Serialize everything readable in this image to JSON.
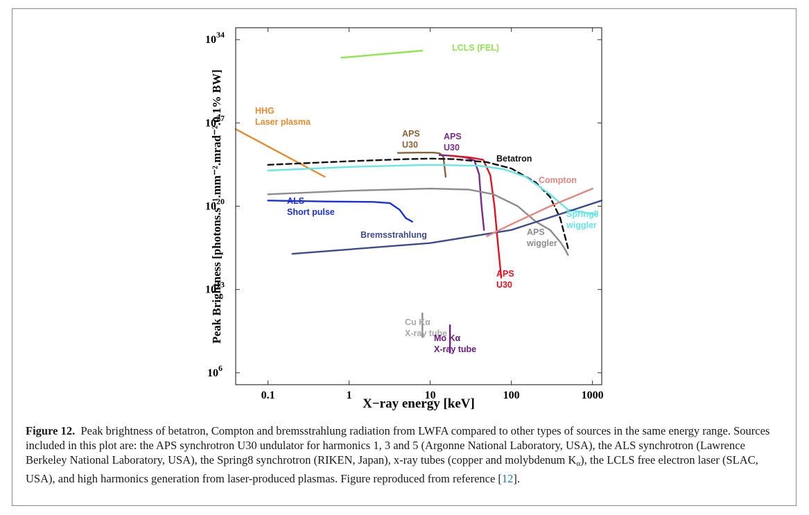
{
  "chart_data": {
    "type": "line",
    "xlabel": "X−ray energy [keV]",
    "ylabel": "Peak Brightness [photons.s⁻¹.mm⁻².mrad⁻².0.1% BW]",
    "x_scale": "log",
    "y_scale": "log",
    "xlim": [
      0.04,
      1300
    ],
    "ylim": [
      100000,
      1e+35
    ],
    "x_ticks": [
      0.1,
      1,
      10,
      100,
      1000
    ],
    "x_tick_labels": [
      "0.1",
      "1",
      "10",
      "100",
      "1000"
    ],
    "y_ticks": [
      1000000,
      10000000000000,
      1e+20,
      1e+27,
      1e+34
    ],
    "y_tick_labels": [
      "10^6",
      "10^13",
      "10^20",
      "10^27",
      "10^34"
    ],
    "grid": false,
    "legend": "none",
    "series": [
      {
        "name": "LCLS (FEL)",
        "color": "#8ee84a",
        "dash": "",
        "points": [
          [
            0.8,
            3e+32
          ],
          [
            8,
            1.2e+33
          ]
        ]
      },
      {
        "name": "HHG Laser plasma",
        "color": "#e8892f",
        "dash": "",
        "points": [
          [
            0.04,
            3e+26
          ],
          [
            0.5,
            3e+22
          ]
        ]
      },
      {
        "name": "APS U30 (harmonic 1)",
        "color": "#8a6238",
        "dash": "",
        "points": [
          [
            4,
            3e+24
          ],
          [
            7,
            3.2e+24
          ],
          [
            11,
            3.2e+24
          ],
          [
            13,
            2.8e+24
          ],
          [
            14.5,
            1.5e+24
          ],
          [
            15.5,
            3e+22
          ]
        ]
      },
      {
        "name": "APS U30 (harmonic 3)",
        "color": "#7a2a8e",
        "dash": "",
        "points": [
          [
            13,
            2e+24
          ],
          [
            20,
            1.7e+24
          ],
          [
            28,
            1.2e+24
          ],
          [
            35,
            7e+23
          ],
          [
            40,
            5e+22
          ],
          [
            43,
            1e+20
          ],
          [
            46,
            1e+18
          ]
        ]
      },
      {
        "name": "APS U30 (harmonic 5)",
        "color": "#e8101f",
        "dash": "",
        "points": [
          [
            18,
            1.7e+24
          ],
          [
            30,
            1.3e+24
          ],
          [
            45,
            8e+23
          ],
          [
            55,
            4e+22
          ],
          [
            62,
            1e+20
          ],
          [
            68,
            1e+17
          ],
          [
            75,
            100000000000000.0
          ]
        ]
      },
      {
        "name": "Betatron",
        "color": "#111111",
        "dash": "8 5",
        "points": [
          [
            0.1,
            3e+23
          ],
          [
            1,
            6e+23
          ],
          [
            5,
            9e+23
          ],
          [
            10,
            1e+24
          ],
          [
            20,
            9e+23
          ],
          [
            50,
            5e+23
          ],
          [
            100,
            1.5e+23
          ],
          [
            200,
            1e+22
          ],
          [
            300,
            6e+20
          ],
          [
            400,
            1e+19
          ],
          [
            500,
            3e+16
          ]
        ]
      },
      {
        "name": "Spring8 wiggler",
        "color": "#66e6e6",
        "dash": "",
        "points": [
          [
            0.1,
            1e+23
          ],
          [
            1,
            2e+23
          ],
          [
            10,
            3e+23
          ],
          [
            40,
            2.5e+23
          ],
          [
            80,
            1.3e+23
          ],
          [
            150,
            3e+22
          ],
          [
            300,
            1e+21
          ],
          [
            500,
            5e+19
          ],
          [
            800,
            3e+19
          ],
          [
            1100,
            2e+19
          ]
        ]
      },
      {
        "name": "APS wiggler",
        "color": "#8c8c8c",
        "dash": "",
        "points": [
          [
            0.1,
            1e+21
          ],
          [
            1,
            2e+21
          ],
          [
            10,
            3e+21
          ],
          [
            30,
            2.5e+21
          ],
          [
            60,
            1e+21
          ],
          [
            120,
            1e+20
          ],
          [
            200,
            5e+18
          ],
          [
            300,
            1e+18
          ],
          [
            400,
            1e+17
          ],
          [
            450,
            3e+16
          ],
          [
            500,
            8000000000000000.0
          ]
        ]
      },
      {
        "name": "ALS Short pulse",
        "color": "#1a2fe0",
        "dash": "",
        "points": [
          [
            0.1,
            3e+20
          ],
          [
            0.5,
            2.5e+20
          ],
          [
            2,
            2.3e+20
          ],
          [
            3.2,
            1.8e+20
          ],
          [
            4.2,
            5e+19
          ],
          [
            5,
            1e+19
          ],
          [
            6,
            5e+18
          ]
        ]
      },
      {
        "name": "Bremsstrahlung",
        "color": "#3d4a8e",
        "dash": "",
        "points": [
          [
            0.2,
            1e+16
          ],
          [
            10,
            8e+16
          ],
          [
            100,
            1e+18
          ],
          [
            1300,
            3e+20
          ]
        ]
      },
      {
        "name": "Compton",
        "color": "#e6877f",
        "dash": "",
        "points": [
          [
            50,
            3e+17
          ],
          [
            100,
            3e+18
          ],
          [
            300,
            1e+20
          ],
          [
            1000,
            3e+21
          ]
        ]
      },
      {
        "name": "Cu Kα X-ray tube",
        "color": "#8c8c8c",
        "dash": "",
        "points": [
          [
            8,
            1000000000.0
          ],
          [
            8,
            100000000000.0
          ]
        ]
      },
      {
        "name": "Mo Kα X-ray tube",
        "color": "#6a1a80",
        "dash": "",
        "points": [
          [
            17.5,
            50000000.0
          ],
          [
            17.5,
            10000000000.0
          ]
        ]
      }
    ]
  },
  "labels": {
    "lcls": "LCLS (FEL)",
    "hhg1": "HHG",
    "hhg2": "Laser plasma",
    "aps_u30_brown_1": "APS",
    "aps_u30_brown_2": "U30",
    "aps_u30_purple_1": "APS",
    "aps_u30_purple_2": "U30",
    "betatron": "Betatron",
    "compton": "Compton",
    "spring8_1": "Spring8",
    "spring8_2": "wiggler",
    "als1": "ALS",
    "als2": "Short pulse",
    "bremsstrahlung": "Bremsstrahlung",
    "aps_wiggler_1": "APS",
    "aps_wiggler_2": "wiggler",
    "aps_u30_red_1": "APS",
    "aps_u30_red_2": "U30",
    "cu1": "Cu Kα",
    "cu2": "X-ray tube",
    "mo1": "Mo Kα",
    "mo2": "X-ray tube"
  },
  "caption": {
    "label": "Figure 12.",
    "text_part1": "Peak brightness of betatron, Compton and bremsstrahlung radiation from LWFA compared to other types of sources in the same energy range. Sources included in this plot are: the APS synchrotron U30 undulator for harmonics 1, 3 and 5 (Argonne National Laboratory, USA), the ALS synchrotron (Lawrence Berkeley National Laboratory, USA), the Spring8 synchrotron (RIKEN, Japan), x-ray tubes (copper and molybdenum K",
    "subscript": "α",
    "text_part2": "), the LCLS free electron laser (SLAC, USA), and high harmonics generation from laser-produced plasmas. Figure reproduced from reference [",
    "ref": "12",
    "text_part3": "]."
  }
}
